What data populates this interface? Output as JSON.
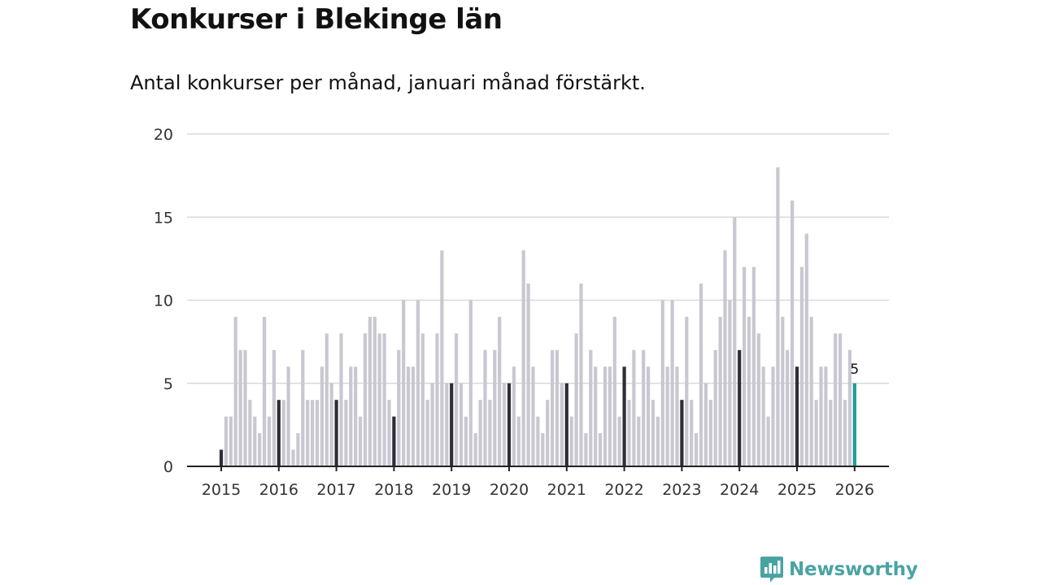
{
  "title": "Konkurser i Blekinge län",
  "subtitle": "Antal konkurser per månad, januari månad förstärkt.",
  "brand": {
    "name": "Newsworthy",
    "icon": "newsworthy-logo-icon"
  },
  "colors": {
    "bar": "#c9c8d1",
    "january": "#2e2d38",
    "latest": "#1a9e96",
    "grid": "#d9d9df",
    "axis": "#222222",
    "brand": "#4aa3a3"
  },
  "chart_data": {
    "type": "bar",
    "title": "Konkurser i Blekinge län",
    "subtitle": "Antal konkurser per månad, januari månad förstärkt.",
    "xlabel": "",
    "ylabel": "",
    "ylim": [
      0,
      20
    ],
    "yticks": [
      0,
      5,
      10,
      15,
      20
    ],
    "grid": true,
    "start": "2015-01",
    "xticks": [
      "2015",
      "2016",
      "2017",
      "2018",
      "2019",
      "2020",
      "2021",
      "2022",
      "2023",
      "2024",
      "2025",
      "2026"
    ],
    "values": [
      1,
      3,
      3,
      9,
      7,
      7,
      4,
      3,
      2,
      9,
      3,
      7,
      4,
      4,
      6,
      1,
      2,
      7,
      4,
      4,
      4,
      6,
      8,
      5,
      4,
      8,
      4,
      6,
      6,
      3,
      8,
      9,
      9,
      8,
      8,
      4,
      3,
      7,
      10,
      6,
      6,
      10,
      8,
      4,
      5,
      8,
      13,
      5,
      5,
      8,
      5,
      3,
      10,
      2,
      4,
      7,
      4,
      7,
      9,
      5,
      5,
      6,
      3,
      13,
      11,
      6,
      3,
      2,
      4,
      7,
      7,
      5,
      5,
      3,
      8,
      11,
      2,
      7,
      6,
      2,
      6,
      6,
      9,
      3,
      6,
      4,
      7,
      3,
      7,
      6,
      4,
      3,
      10,
      6,
      10,
      6,
      4,
      9,
      4,
      2,
      11,
      5,
      4,
      7,
      9,
      13,
      10,
      15,
      7,
      12,
      9,
      12,
      8,
      6,
      3,
      6,
      18,
      9,
      7,
      16,
      6,
      12,
      14,
      9,
      4,
      6,
      6,
      4,
      8,
      8,
      4,
      7,
      5
    ],
    "highlight": "january",
    "latest_label": "5"
  }
}
